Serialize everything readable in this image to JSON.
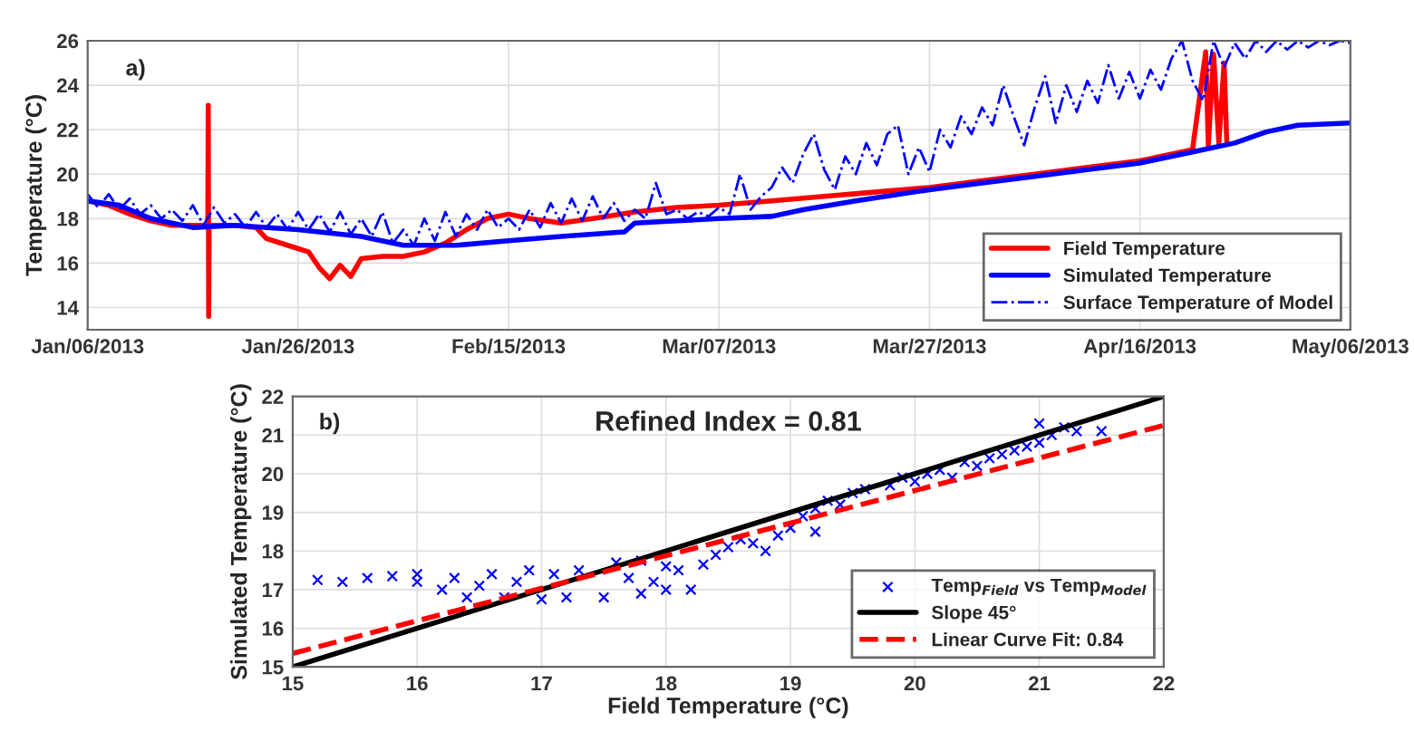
{
  "chart_data": [
    {
      "type": "line",
      "ylabel": "Temperature (°C)",
      "annotations": [
        "a)"
      ],
      "xlim": [
        "2013-01-06",
        "2013-05-06"
      ],
      "xticks": [
        {
          "value": "2013-01-06",
          "label": "Jan/06/2013"
        },
        {
          "value": "2013-01-26",
          "label": "Jan/26/2013"
        },
        {
          "value": "2013-02-15",
          "label": "Feb/15/2013"
        },
        {
          "value": "2013-03-07",
          "label": "Mar/07/2013"
        },
        {
          "value": "2013-03-27",
          "label": "Mar/27/2013"
        },
        {
          "value": "2013-04-16",
          "label": "Apr/16/2013"
        },
        {
          "value": "2013-05-06",
          "label": "May/06/2013"
        }
      ],
      "ylim": [
        13,
        26
      ],
      "yticks": [
        14,
        16,
        18,
        20,
        22,
        24,
        26
      ],
      "grid": true,
      "legend": "bottom right",
      "series": [
        {
          "name": "Field Temperature",
          "color": "#ff0000",
          "line_style": "solid",
          "x": [
            "2013-01-06",
            "2013-01-08",
            "2013-01-10",
            "2013-01-12",
            "2013-01-14",
            "2013-01-17T10:00",
            "2013-01-17T11:00",
            "2013-01-17T12:00",
            "2013-01-17T13:00",
            "2013-01-20",
            "2013-01-22",
            "2013-01-23",
            "2013-01-25",
            "2013-01-27",
            "2013-01-28",
            "2013-01-29",
            "2013-01-30",
            "2013-01-31",
            "2013-02-01",
            "2013-02-03",
            "2013-02-05",
            "2013-02-07",
            "2013-02-09",
            "2013-02-11",
            "2013-02-13",
            "2013-02-15",
            "2013-02-17",
            "2013-02-20",
            "2013-02-23",
            "2013-02-27",
            "2013-03-03",
            "2013-03-07",
            "2013-03-12",
            "2013-03-17",
            "2013-03-22",
            "2013-03-27",
            "2013-04-01",
            "2013-04-06",
            "2013-04-11",
            "2013-04-16",
            "2013-04-21",
            "2013-04-22T06:00",
            "2013-04-22T12:00",
            "2013-04-23T00:00",
            "2013-04-23T12:00",
            "2013-04-24T00:00",
            "2013-04-24T06:00"
          ],
          "values": [
            18.8,
            18.6,
            18.2,
            17.9,
            17.7,
            17.7,
            23.1,
            13.6,
            17.7,
            17.7,
            17.6,
            17.1,
            16.8,
            16.5,
            15.8,
            15.3,
            15.9,
            15.4,
            16.2,
            16.3,
            16.3,
            16.5,
            16.9,
            17.5,
            18.0,
            18.2,
            18.0,
            17.8,
            18.0,
            18.3,
            18.5,
            18.6,
            18.8,
            19.0,
            19.2,
            19.4,
            19.7,
            20.0,
            20.3,
            20.6,
            21.1,
            25.5,
            21.3,
            25.4,
            21.4,
            25.0,
            21.5
          ]
        },
        {
          "name": "Simulated Temperature",
          "color": "#0000ff",
          "line_style": "solid",
          "x": [
            "2013-01-06",
            "2013-01-09",
            "2013-01-12",
            "2013-01-16",
            "2013-01-20",
            "2013-01-26",
            "2013-02-01",
            "2013-02-05",
            "2013-02-10",
            "2013-02-15",
            "2013-02-20",
            "2013-02-26",
            "2013-02-27",
            "2013-03-03",
            "2013-03-07",
            "2013-03-12",
            "2013-03-15",
            "2013-03-20",
            "2013-03-27",
            "2013-04-01",
            "2013-04-06",
            "2013-04-11",
            "2013-04-16",
            "2013-04-21",
            "2013-04-25",
            "2013-04-28",
            "2013-05-01",
            "2013-05-06"
          ],
          "values": [
            18.8,
            18.6,
            18.0,
            17.6,
            17.7,
            17.5,
            17.2,
            16.8,
            16.8,
            17.0,
            17.2,
            17.4,
            17.8,
            17.9,
            18.0,
            18.1,
            18.4,
            18.8,
            19.3,
            19.6,
            19.9,
            20.2,
            20.5,
            21.0,
            21.4,
            21.9,
            22.2,
            22.3
          ]
        },
        {
          "name": "Surface Temperature of Model",
          "color": "#0000ff",
          "line_style": "dashdot",
          "x": [
            "2013-01-06",
            "2013-01-07",
            "2013-01-08",
            "2013-01-09",
            "2013-01-10",
            "2013-01-11",
            "2013-01-12",
            "2013-01-13",
            "2013-01-14",
            "2013-01-15",
            "2013-01-16",
            "2013-01-17",
            "2013-01-18",
            "2013-01-19",
            "2013-01-20",
            "2013-01-21",
            "2013-01-22",
            "2013-01-23",
            "2013-01-24",
            "2013-01-25",
            "2013-01-26",
            "2013-01-27",
            "2013-01-28",
            "2013-01-29",
            "2013-01-30",
            "2013-01-31",
            "2013-02-01",
            "2013-02-02",
            "2013-02-03",
            "2013-02-04",
            "2013-02-05",
            "2013-02-06",
            "2013-02-07",
            "2013-02-08",
            "2013-02-09",
            "2013-02-10",
            "2013-02-11",
            "2013-02-12",
            "2013-02-13",
            "2013-02-14",
            "2013-02-15",
            "2013-02-16",
            "2013-02-17",
            "2013-02-18",
            "2013-02-19",
            "2013-02-20",
            "2013-02-21",
            "2013-02-22",
            "2013-02-23",
            "2013-02-24",
            "2013-02-25",
            "2013-02-26",
            "2013-02-27",
            "2013-02-28",
            "2013-03-01",
            "2013-03-02",
            "2013-03-03",
            "2013-03-04",
            "2013-03-05",
            "2013-03-06",
            "2013-03-07",
            "2013-03-08",
            "2013-03-09",
            "2013-03-10",
            "2013-03-11",
            "2013-03-12",
            "2013-03-13",
            "2013-03-14",
            "2013-03-15",
            "2013-03-16",
            "2013-03-17",
            "2013-03-18",
            "2013-03-19",
            "2013-03-20",
            "2013-03-21",
            "2013-03-22",
            "2013-03-23",
            "2013-03-24",
            "2013-03-25",
            "2013-03-26",
            "2013-03-27",
            "2013-03-28",
            "2013-03-29",
            "2013-03-30",
            "2013-03-31",
            "2013-04-01",
            "2013-04-02",
            "2013-04-03",
            "2013-04-04",
            "2013-04-05",
            "2013-04-06",
            "2013-04-07",
            "2013-04-08",
            "2013-04-09",
            "2013-04-10",
            "2013-04-11",
            "2013-04-12",
            "2013-04-13",
            "2013-04-14",
            "2013-04-15",
            "2013-04-16",
            "2013-04-17",
            "2013-04-18",
            "2013-04-19",
            "2013-04-20",
            "2013-04-21",
            "2013-04-22",
            "2013-04-23",
            "2013-04-24",
            "2013-04-25",
            "2013-04-26",
            "2013-04-27",
            "2013-04-28",
            "2013-04-29",
            "2013-04-30",
            "2013-05-01",
            "2013-05-02",
            "2013-05-03",
            "2013-05-04",
            "2013-05-05",
            "2013-05-06"
          ],
          "values": [
            19.1,
            18.5,
            19.1,
            18.4,
            18.9,
            18.2,
            18.6,
            18.0,
            18.4,
            17.9,
            18.6,
            17.7,
            18.5,
            17.8,
            18.2,
            17.6,
            18.3,
            17.6,
            18.2,
            17.5,
            18.3,
            17.5,
            18.2,
            17.4,
            18.3,
            17.3,
            18.0,
            17.2,
            18.3,
            16.9,
            17.5,
            16.8,
            18.0,
            17.0,
            18.3,
            17.2,
            18.2,
            17.5,
            18.4,
            17.6,
            18.0,
            17.5,
            18.4,
            17.6,
            18.7,
            17.8,
            18.9,
            17.9,
            19.0,
            18.0,
            18.7,
            17.9,
            18.4,
            18.0,
            19.6,
            18.2,
            18.4,
            18.0,
            18.3,
            18.1,
            18.5,
            18.2,
            20.0,
            18.4,
            19.0,
            19.4,
            20.3,
            19.6,
            20.9,
            21.8,
            20.2,
            19.3,
            20.8,
            20.0,
            21.4,
            20.4,
            21.8,
            22.2,
            20.0,
            21.2,
            20.1,
            22.0,
            21.2,
            22.6,
            21.8,
            23.0,
            22.2,
            24.0,
            22.6,
            21.3,
            23.0,
            24.4,
            22.3,
            24.0,
            22.8,
            24.2,
            23.2,
            24.9,
            23.4,
            24.6,
            23.4,
            24.7,
            23.8,
            25.2,
            26.0,
            24.2,
            23.3,
            26.0,
            24.8,
            25.9,
            25.2,
            26.0,
            25.5,
            26.0,
            25.6,
            26.0,
            25.7,
            26.0,
            25.8,
            26.0,
            25.9
          ]
        }
      ]
    },
    {
      "type": "scatter",
      "xlabel": "Field Temperature (°C)",
      "ylabel": "Simulated Temperature (°C)",
      "annotations": [
        "b)",
        "Refined Index = 0.81"
      ],
      "xlim": [
        15,
        22
      ],
      "xticks": [
        15,
        16,
        17,
        18,
        19,
        20,
        21,
        22
      ],
      "ylim": [
        15,
        22
      ],
      "yticks": [
        15,
        16,
        17,
        18,
        19,
        20,
        21,
        22
      ],
      "grid": true,
      "legend": "bottom right",
      "series": [
        {
          "name": "Temp$_{Field}$ vs Temp$_{Model}$",
          "type": "scatter",
          "color": "#0000ff",
          "marker": "cross",
          "x": [
            15.2,
            15.4,
            15.6,
            15.8,
            16.0,
            16.0,
            16.2,
            16.3,
            16.4,
            16.5,
            16.6,
            16.7,
            16.8,
            16.9,
            17.0,
            17.1,
            17.2,
            17.3,
            17.5,
            17.6,
            17.7,
            17.8,
            17.9,
            18.0,
            18.1,
            18.2,
            17.8,
            18.0,
            18.3,
            18.4,
            18.5,
            18.6,
            18.7,
            18.8,
            18.9,
            19.0,
            19.1,
            19.2,
            19.2,
            19.3,
            19.4,
            19.5,
            19.6,
            19.8,
            19.9,
            20.0,
            20.1,
            20.2,
            20.3,
            20.4,
            20.5,
            20.6,
            20.7,
            20.8,
            20.9,
            21.0,
            21.1,
            21.2,
            21.3,
            21.5,
            21.0
          ],
          "values": [
            17.25,
            17.2,
            17.3,
            17.35,
            17.2,
            17.4,
            17.0,
            17.3,
            16.8,
            17.1,
            17.4,
            16.8,
            17.2,
            17.5,
            16.75,
            17.4,
            16.8,
            17.5,
            16.8,
            17.7,
            17.3,
            16.9,
            17.2,
            17.0,
            17.5,
            17.0,
            17.75,
            17.6,
            17.65,
            17.9,
            18.1,
            18.3,
            18.2,
            18.0,
            18.4,
            18.6,
            18.9,
            18.5,
            19.1,
            19.3,
            19.2,
            19.5,
            19.6,
            19.7,
            19.9,
            19.8,
            20.0,
            20.1,
            19.9,
            20.3,
            20.2,
            20.4,
            20.5,
            20.6,
            20.7,
            20.8,
            21.0,
            21.2,
            21.1,
            21.1,
            21.3
          ]
        },
        {
          "name": "Slope 45°",
          "type": "line",
          "color": "#000000",
          "line_style": "solid",
          "x": [
            15,
            22
          ],
          "values": [
            15,
            22
          ]
        },
        {
          "name": "Linear Curve Fit: 0.84",
          "type": "line",
          "color": "#ff0000",
          "line_style": "dashed",
          "x": [
            15,
            22
          ],
          "values": [
            15.35,
            21.25
          ]
        }
      ]
    }
  ]
}
